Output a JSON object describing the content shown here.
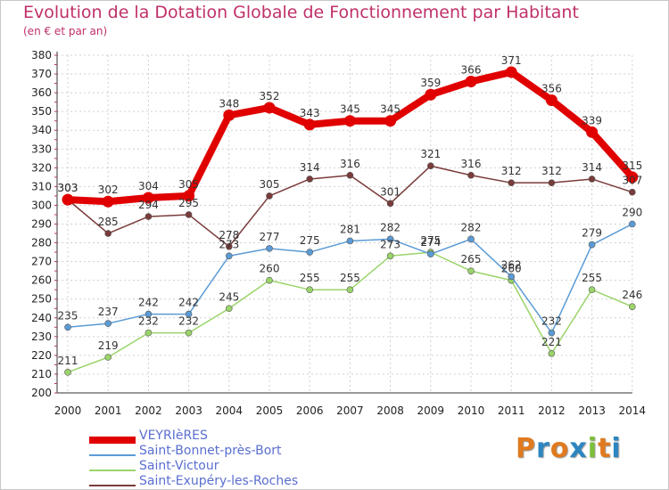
{
  "header": {
    "title": "Evolution de la Dotation Globale de Fonctionnement par Habitant",
    "subtitle": "(en € et par an)"
  },
  "logo": {
    "text": "Proxiti"
  },
  "colors": {
    "title": "#c0306a",
    "legend_text": "#5a6fd0",
    "axis": "#333333",
    "grid": "#d0d0d0"
  },
  "chart_data": {
    "type": "line",
    "x": [
      "2000",
      "2001",
      "2002",
      "2003",
      "2004",
      "2005",
      "2006",
      "2007",
      "2008",
      "2009",
      "2010",
      "2011",
      "2012",
      "2013",
      "2014"
    ],
    "ylim": [
      200,
      380
    ],
    "yticks": [
      200,
      210,
      220,
      230,
      240,
      250,
      260,
      270,
      280,
      290,
      300,
      310,
      320,
      330,
      340,
      350,
      360,
      370,
      380
    ],
    "grid": true,
    "legend_position": "bottom-left",
    "series": [
      {
        "name": "VEYRIèRES",
        "color": "#e00000",
        "values": [
          303,
          302,
          304,
          305,
          348,
          352,
          343,
          345,
          345,
          359,
          366,
          371,
          356,
          339,
          315
        ]
      },
      {
        "name": "Saint-Bonnet-près-Bort",
        "color": "#5b9bd5",
        "values": [
          235,
          237,
          242,
          242,
          273,
          277,
          275,
          281,
          282,
          274,
          282,
          262,
          232,
          279,
          290
        ]
      },
      {
        "name": "Saint-Victour",
        "color": "#9bd46a",
        "values": [
          211,
          219,
          232,
          232,
          245,
          260,
          255,
          255,
          273,
          275,
          265,
          260,
          221,
          255,
          246
        ]
      },
      {
        "name": "Saint-Exupéry-les-Roches",
        "color": "#7a3b3b",
        "values": [
          303,
          285,
          294,
          295,
          278,
          305,
          314,
          316,
          301,
          321,
          316,
          312,
          312,
          314,
          307
        ]
      }
    ]
  }
}
